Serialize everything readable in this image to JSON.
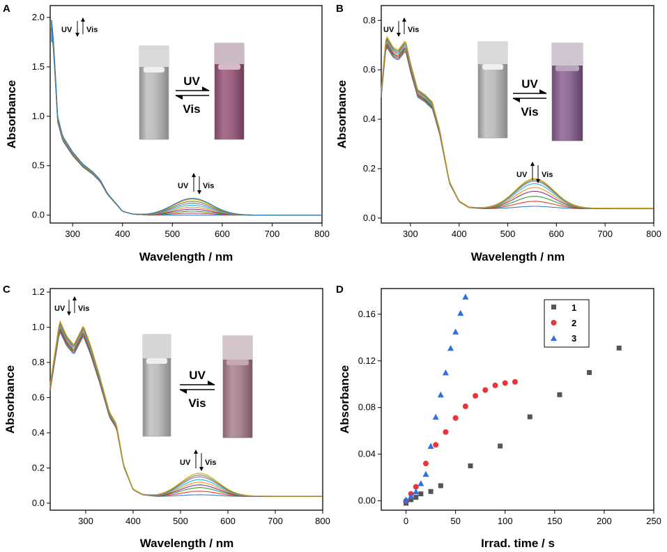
{
  "figure_title": "",
  "colors": {
    "series1": "#555555",
    "series2": "#e8353a",
    "series3": "#2f6fe0",
    "spectra": [
      "#3a7cc7",
      "#e0392c",
      "#2ca02c",
      "#8c2d8c",
      "#ff8c1a",
      "#17becf",
      "#9467bd",
      "#6b8e23",
      "#d4a017",
      "#1f77b4",
      "#b8860b",
      "#556b2f"
    ]
  },
  "panels": [
    {
      "letter": "A",
      "xlabel": "Wavelength / nm",
      "ylabel": "Absorbance",
      "yticks": [
        "0.0",
        "0.5",
        "1.0",
        "1.5",
        "2.0"
      ],
      "xticks": [
        "300",
        "400",
        "500",
        "600",
        "700",
        "800"
      ],
      "ann_uv": "UV",
      "ann_vis": "Vis",
      "arrow_uv": "UV",
      "arrow_vis": "Vis"
    },
    {
      "letter": "B",
      "xlabel": "Wavelength / nm",
      "ylabel": "Absorbance",
      "yticks": [
        "0.0",
        "0.2",
        "0.4",
        "0.6",
        "0.8"
      ],
      "xticks": [
        "300",
        "400",
        "500",
        "600",
        "700",
        "800"
      ],
      "ann_uv": "UV",
      "ann_vis": "Vis",
      "arrow_uv": "UV",
      "arrow_vis": "Vis"
    },
    {
      "letter": "C",
      "xlabel": "Wavelength / nm",
      "ylabel": "Absorbance",
      "yticks": [
        "0.0",
        "0.2",
        "0.4",
        "0.6",
        "0.8",
        "1.0",
        "1.2"
      ],
      "xticks": [
        "300",
        "400",
        "500",
        "600",
        "700",
        "800"
      ],
      "ann_uv": "UV",
      "ann_vis": "Vis",
      "arrow_uv": "UV",
      "arrow_vis": "Vis"
    },
    {
      "letter": "D",
      "xlabel": "Irrad. time / s",
      "ylabel": "Absorbance",
      "yticks": [
        "0.00",
        "0.04",
        "0.08",
        "0.12",
        "0.16"
      ],
      "xticks": [
        "0",
        "50",
        "100",
        "150",
        "200",
        "250"
      ],
      "legend": [
        "1",
        "2",
        "3"
      ]
    }
  ],
  "chart_data": [
    {
      "type": "line",
      "panel": "A",
      "title": "",
      "xlabel": "Wavelength / nm",
      "ylabel": "Absorbance",
      "xlim": [
        255,
        800
      ],
      "ylim": [
        -0.08,
        2.12
      ],
      "note": "Series of UV-vis spectra recorded during UV irradiation; visible band grows, reversed by Vis light",
      "visible_band_center_nm": 540,
      "visible_band_max_absorbance": 0.17,
      "peak_uv_absorbance": 1.97,
      "band_series_peak_values": [
        0.0,
        0.02,
        0.04,
        0.06,
        0.08,
        0.1,
        0.12,
        0.14,
        0.16,
        0.17
      ],
      "uv_profile": {
        "x": [
          258,
          262,
          270,
          280,
          290,
          300,
          320,
          340,
          355,
          370,
          400,
          420,
          450
        ],
        "y": [
          1.97,
          1.75,
          1.0,
          0.8,
          0.72,
          0.64,
          0.52,
          0.44,
          0.36,
          0.22,
          0.04,
          0.01,
          0.0
        ]
      }
    },
    {
      "type": "line",
      "panel": "B",
      "title": "",
      "xlabel": "Wavelength / nm",
      "ylabel": "Absorbance",
      "xlim": [
        240,
        800
      ],
      "ylim": [
        -0.02,
        0.86
      ],
      "visible_band_center_nm": 555,
      "visible_band_max_absorbance": 0.12,
      "band_series_peak_values": [
        0.01,
        0.03,
        0.05,
        0.07,
        0.085,
        0.1,
        0.11,
        0.115,
        0.12
      ],
      "uv_profile": {
        "x": [
          240,
          250,
          265,
          275,
          290,
          300,
          315,
          330,
          345,
          360,
          380,
          400,
          420,
          450
        ],
        "y": [
          0.52,
          0.74,
          0.69,
          0.68,
          0.72,
          0.63,
          0.52,
          0.5,
          0.47,
          0.36,
          0.15,
          0.07,
          0.045,
          0.04
        ]
      }
    },
    {
      "type": "line",
      "panel": "C",
      "title": "",
      "xlabel": "Wavelength / nm",
      "ylabel": "Absorbance",
      "xlim": [
        225,
        800
      ],
      "ylim": [
        -0.04,
        1.22
      ],
      "visible_band_center_nm": 540,
      "visible_band_max_absorbance": 0.13,
      "band_series_peak_values": [
        0.01,
        0.03,
        0.05,
        0.065,
        0.08,
        0.095,
        0.11,
        0.12,
        0.13
      ],
      "uv_profile": {
        "x": [
          225,
          245,
          260,
          275,
          295,
          310,
          330,
          350,
          365,
          380,
          400,
          420,
          450
        ],
        "y": [
          0.68,
          1.04,
          0.95,
          0.9,
          1.01,
          0.9,
          0.72,
          0.52,
          0.45,
          0.22,
          0.08,
          0.05,
          0.04
        ]
      }
    },
    {
      "type": "scatter",
      "panel": "D",
      "title": "",
      "xlabel": "Irrad. time / s",
      "ylabel": "Absorbance",
      "xlim": [
        -25,
        250
      ],
      "ylim": [
        -0.008,
        0.182
      ],
      "legend": "top-right",
      "series": [
        {
          "name": "1",
          "marker": "square",
          "x": [
            0,
            5,
            10,
            15,
            25,
            35,
            65,
            95,
            125,
            155,
            185,
            215
          ],
          "y": [
            -0.002,
            0.001,
            0.003,
            0.006,
            0.008,
            0.013,
            0.03,
            0.047,
            0.072,
            0.091,
            0.11,
            0.131
          ]
        },
        {
          "name": "2",
          "marker": "circle",
          "x": [
            0,
            5,
            10,
            20,
            30,
            40,
            50,
            60,
            70,
            80,
            90,
            100,
            110
          ],
          "y": [
            0.0,
            0.006,
            0.012,
            0.032,
            0.048,
            0.059,
            0.071,
            0.081,
            0.09,
            0.095,
            0.099,
            0.101,
            0.102
          ]
        },
        {
          "name": "3",
          "marker": "triangle",
          "x": [
            0,
            5,
            10,
            15,
            20,
            25,
            30,
            35,
            40,
            45,
            50,
            55,
            60
          ],
          "y": [
            0.001,
            0.004,
            0.008,
            0.015,
            0.023,
            0.047,
            0.072,
            0.091,
            0.11,
            0.131,
            0.145,
            0.161,
            0.175
          ]
        }
      ]
    }
  ]
}
